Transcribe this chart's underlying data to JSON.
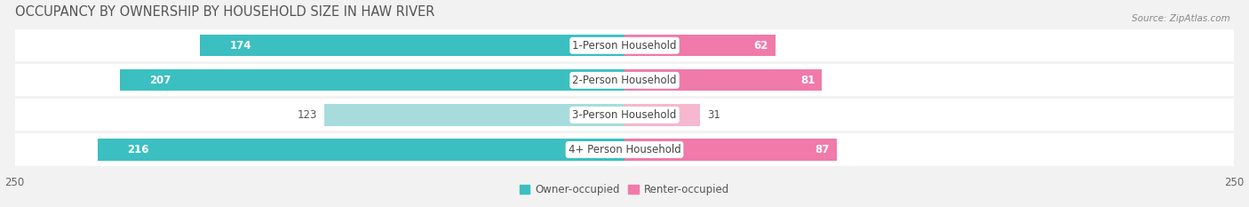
{
  "title": "OCCUPANCY BY OWNERSHIP BY HOUSEHOLD SIZE IN HAW RIVER",
  "source": "Source: ZipAtlas.com",
  "categories": [
    "1-Person Household",
    "2-Person Household",
    "3-Person Household",
    "4+ Person Household"
  ],
  "owner_values": [
    174,
    207,
    123,
    216
  ],
  "renter_values": [
    62,
    81,
    31,
    87
  ],
  "owner_color_dark": "#3bbfc0",
  "owner_color_light": "#a8dcdc",
  "renter_color_dark": "#f07aaa",
  "renter_color_light": "#f5b8ce",
  "axis_max": 250,
  "bar_height": 0.62,
  "background_color": "#f2f2f2",
  "row_bg_color": "#ffffff",
  "row_separator_color": "#e0e0e0",
  "title_fontsize": 10.5,
  "label_fontsize": 8.5,
  "value_fontsize": 8.5,
  "axis_label_fontsize": 8.5,
  "legend_fontsize": 8.5,
  "source_fontsize": 7.5,
  "owner_dark_rows": [
    0,
    1,
    3
  ],
  "renter_dark_rows": [
    0,
    1,
    3
  ]
}
